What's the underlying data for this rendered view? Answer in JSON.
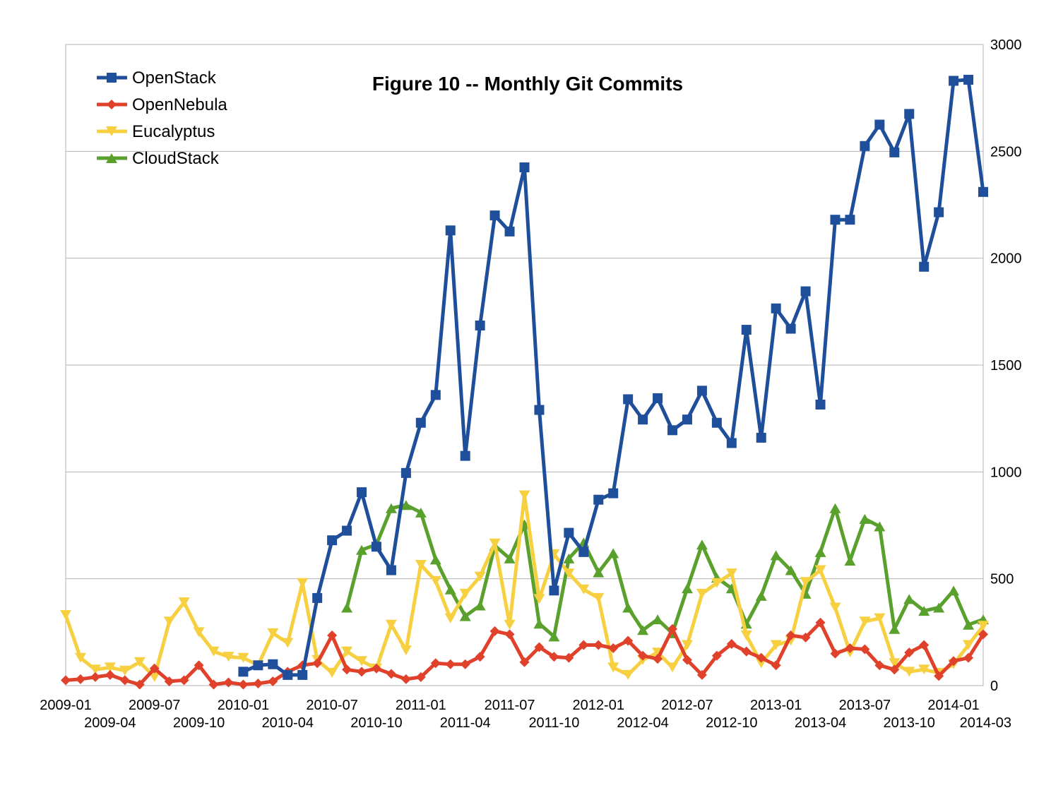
{
  "chart_data": {
    "type": "line",
    "title": "Figure 10 -- Monthly Git Commits",
    "xlabel": "",
    "ylabel": "",
    "ylim": [
      0,
      3000
    ],
    "y_ticks": [
      "0",
      "500",
      "1000",
      "1500",
      "2000",
      "2500",
      "3000"
    ],
    "y_axis_side": "right",
    "grid": true,
    "legend_position": "top-left",
    "x_tick_labels": [
      {
        "label": "2009-01",
        "index": 0,
        "row": 0
      },
      {
        "label": "2009-04",
        "index": 3,
        "row": 1
      },
      {
        "label": "2009-07",
        "index": 6,
        "row": 0
      },
      {
        "label": "2009-10",
        "index": 9,
        "row": 1
      },
      {
        "label": "2010-01",
        "index": 12,
        "row": 0
      },
      {
        "label": "2010-04",
        "index": 15,
        "row": 1
      },
      {
        "label": "2010-07",
        "index": 18,
        "row": 0
      },
      {
        "label": "2010-10",
        "index": 21,
        "row": 1
      },
      {
        "label": "2011-01",
        "index": 24,
        "row": 0
      },
      {
        "label": "2011-04",
        "index": 27,
        "row": 1
      },
      {
        "label": "2011-07",
        "index": 30,
        "row": 0
      },
      {
        "label": "2011-10",
        "index": 33,
        "row": 1
      },
      {
        "label": "2012-01",
        "index": 36,
        "row": 0
      },
      {
        "label": "2012-04",
        "index": 39,
        "row": 1
      },
      {
        "label": "2012-07",
        "index": 42,
        "row": 0
      },
      {
        "label": "2012-10",
        "index": 45,
        "row": 1
      },
      {
        "label": "2013-01",
        "index": 48,
        "row": 0
      },
      {
        "label": "2013-04",
        "index": 51,
        "row": 1
      },
      {
        "label": "2013-07",
        "index": 54,
        "row": 0
      },
      {
        "label": "2013-10",
        "index": 57,
        "row": 1
      },
      {
        "label": "2014-01",
        "index": 60,
        "row": 0
      },
      {
        "label": "2014-03",
        "index": 62,
        "row": 1
      }
    ],
    "num_months": 63,
    "series": [
      {
        "name": "OpenStack",
        "color": "#1f4e9a",
        "marker": "square",
        "start_index": 12,
        "values": [
          65,
          95,
          100,
          50,
          50,
          410,
          680,
          725,
          905,
          650,
          540,
          995,
          1230,
          1360,
          2130,
          1075,
          1685,
          2200,
          2125,
          2425,
          1290,
          445,
          715,
          625,
          870,
          900,
          1340,
          1245,
          1345,
          1195,
          1245,
          1380,
          1230,
          1135,
          1665,
          1160,
          1765,
          1670,
          1845,
          1315,
          2180,
          2180,
          2525,
          2625,
          2495,
          2675,
          1960,
          2215,
          2830,
          2835,
          2310
        ]
      },
      {
        "name": "OpenNebula",
        "color": "#e0412a",
        "marker": "diamond",
        "start_index": 0,
        "values": [
          25,
          30,
          40,
          50,
          25,
          5,
          80,
          20,
          25,
          95,
          5,
          15,
          5,
          10,
          20,
          65,
          95,
          105,
          235,
          75,
          65,
          80,
          55,
          30,
          40,
          105,
          100,
          100,
          135,
          255,
          240,
          110,
          180,
          135,
          130,
          190,
          190,
          175,
          210,
          140,
          125,
          265,
          120,
          50,
          140,
          195,
          160,
          130,
          95,
          235,
          225,
          295,
          150,
          175,
          170,
          95,
          75,
          155,
          190,
          45,
          115,
          130,
          240
        ]
      },
      {
        "name": "Eucalyptus",
        "color": "#f6d040",
        "marker": "triangle-down",
        "start_index": 0,
        "values": [
          330,
          130,
          75,
          85,
          70,
          110,
          40,
          300,
          390,
          250,
          160,
          135,
          130,
          95,
          245,
          200,
          480,
          120,
          60,
          160,
          115,
          80,
          285,
          165,
          565,
          490,
          315,
          430,
          510,
          665,
          285,
          890,
          405,
          615,
          525,
          450,
          410,
          85,
          50,
          120,
          155,
          85,
          190,
          430,
          480,
          525,
          235,
          105,
          190,
          210,
          485,
          540,
          365,
          155,
          300,
          315,
          105,
          65,
          75,
          60,
          100,
          190,
          280
        ]
      },
      {
        "name": "CloudStack",
        "color": "#5aa02c",
        "marker": "triangle-up",
        "start_index": 19,
        "values": [
          365,
          635,
          660,
          830,
          845,
          810,
          590,
          450,
          325,
          375,
          655,
          595,
          755,
          290,
          230,
          595,
          670,
          530,
          620,
          365,
          260,
          310,
          245,
          455,
          660,
          505,
          455,
          290,
          420,
          610,
          540,
          430,
          625,
          830,
          585,
          780,
          745,
          265,
          405,
          350,
          365,
          445,
          285,
          310
        ]
      }
    ]
  }
}
